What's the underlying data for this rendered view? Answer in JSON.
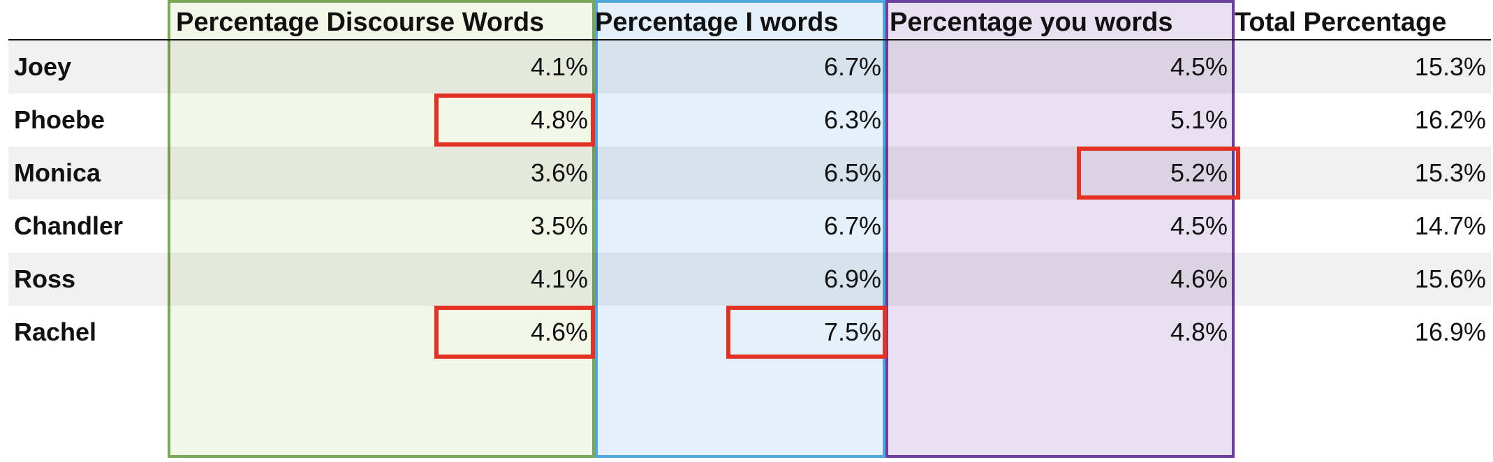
{
  "colors": {
    "discourse_fill": "#f2f7e8",
    "discourse_border": "#7ea65a",
    "i_fill": "#e4f1fa",
    "i_border": "#4fa8dc",
    "you_fill": "#e8e0f0",
    "you_border": "#6a3fa0",
    "highlight": "#e53024"
  },
  "chart_data": {
    "type": "table",
    "columns": [
      {
        "key": "discourse",
        "label": "Percentage Discourse Words"
      },
      {
        "key": "i",
        "label": "Percentage I words"
      },
      {
        "key": "you",
        "label": "Percentage you words"
      },
      {
        "key": "total",
        "label": "Total Percentage"
      }
    ],
    "rows": [
      {
        "name": "Joey",
        "discourse": "4.1%",
        "i": "6.7%",
        "you": "4.5%",
        "total": "15.3%"
      },
      {
        "name": "Phoebe",
        "discourse": "4.8%",
        "i": "6.3%",
        "you": "5.1%",
        "total": "16.2%"
      },
      {
        "name": "Monica",
        "discourse": "3.6%",
        "i": "6.5%",
        "you": "5.2%",
        "total": "15.3%"
      },
      {
        "name": "Chandler",
        "discourse": "3.5%",
        "i": "6.7%",
        "you": "4.5%",
        "total": "14.7%"
      },
      {
        "name": "Ross",
        "discourse": "4.1%",
        "i": "6.9%",
        "you": "4.6%",
        "total": "15.6%"
      },
      {
        "name": "Rachel",
        "discourse": "4.6%",
        "i": "7.5%",
        "you": "4.8%",
        "total": "16.9%"
      }
    ],
    "highlighted_cells": [
      {
        "row": "Phoebe",
        "column": "discourse"
      },
      {
        "row": "Monica",
        "column": "you"
      },
      {
        "row": "Rachel",
        "column": "discourse"
      },
      {
        "row": "Rachel",
        "column": "i"
      }
    ]
  }
}
